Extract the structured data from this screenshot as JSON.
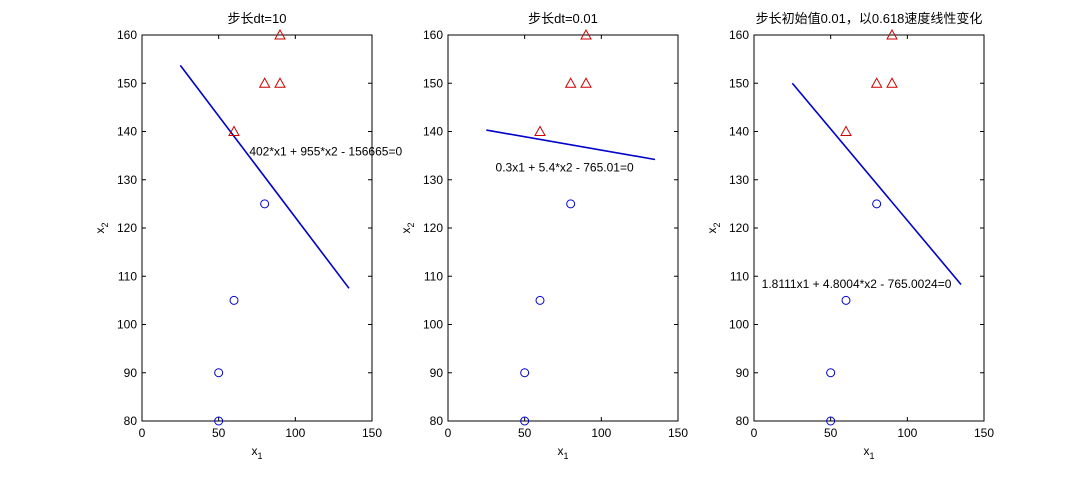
{
  "chart_data": [
    {
      "type": "scatter",
      "title": "步长dt=10",
      "xlabel": "x",
      "xlabel_sub": "1",
      "ylabel": "x",
      "ylabel_sub": "2",
      "xlim": [
        0,
        150
      ],
      "ylim": [
        80,
        160
      ],
      "xticks": [
        0,
        50,
        100,
        150
      ],
      "yticks": [
        80,
        90,
        100,
        110,
        120,
        130,
        140,
        150,
        160
      ],
      "grid": false,
      "series": [
        {
          "marker": "triangle",
          "color": "#cc0000",
          "points": [
            [
              60,
              140
            ],
            [
              80,
              150
            ],
            [
              90,
              150
            ],
            [
              90,
              160
            ]
          ]
        },
        {
          "marker": "circle",
          "color": "#0000cc",
          "points": [
            [
              50,
              80
            ],
            [
              50,
              90
            ],
            [
              60,
              105
            ],
            [
              80,
              125
            ]
          ]
        }
      ],
      "line": {
        "color": "#0000cc",
        "points": [
          [
            25,
            153.7
          ],
          [
            135,
            107.5
          ]
        ]
      },
      "annotation": {
        "text": "402*x1 + 955*x2 - 156665=0",
        "x": 70,
        "y": 135
      }
    },
    {
      "type": "scatter",
      "title": "步长dt=0.01",
      "xlabel": "x",
      "xlabel_sub": "1",
      "ylabel": "x",
      "ylabel_sub": "2",
      "xlim": [
        0,
        150
      ],
      "ylim": [
        80,
        160
      ],
      "xticks": [
        0,
        50,
        100,
        150
      ],
      "yticks": [
        80,
        90,
        100,
        110,
        120,
        130,
        140,
        150,
        160
      ],
      "grid": false,
      "series": [
        {
          "marker": "triangle",
          "color": "#cc0000",
          "points": [
            [
              60,
              140
            ],
            [
              80,
              150
            ],
            [
              90,
              150
            ],
            [
              90,
              160
            ]
          ]
        },
        {
          "marker": "circle",
          "color": "#0000cc",
          "points": [
            [
              50,
              80
            ],
            [
              50,
              90
            ],
            [
              60,
              105
            ],
            [
              80,
              125
            ]
          ]
        }
      ],
      "line": {
        "color": "#0000cc",
        "points": [
          [
            25,
            140.3
          ],
          [
            135,
            134.2
          ]
        ]
      },
      "annotation": {
        "text": "0.3x1 + 5.4*x2 - 765.01=0",
        "x": 31,
        "y": 131.7
      }
    },
    {
      "type": "scatter",
      "title": "步长初始值0.01，以0.618速度线性变化",
      "xlabel": "x",
      "xlabel_sub": "1",
      "ylabel": "x",
      "ylabel_sub": "2",
      "xlim": [
        0,
        150
      ],
      "ylim": [
        80,
        160
      ],
      "xticks": [
        0,
        50,
        100,
        150
      ],
      "yticks": [
        80,
        90,
        100,
        110,
        120,
        130,
        140,
        150,
        160
      ],
      "grid": false,
      "series": [
        {
          "marker": "triangle",
          "color": "#cc0000",
          "points": [
            [
              60,
              140
            ],
            [
              80,
              150
            ],
            [
              90,
              150
            ],
            [
              90,
              160
            ]
          ]
        },
        {
          "marker": "circle",
          "color": "#0000cc",
          "points": [
            [
              50,
              80
            ],
            [
              50,
              90
            ],
            [
              60,
              105
            ],
            [
              80,
              125
            ]
          ]
        }
      ],
      "line": {
        "color": "#0000cc",
        "points": [
          [
            25,
            150
          ],
          [
            135,
            108.3
          ]
        ]
      },
      "annotation": {
        "text": "1.8111x1 + 4.8004*x2 - 765.0024=0",
        "x": 5,
        "y": 107.6
      }
    }
  ]
}
